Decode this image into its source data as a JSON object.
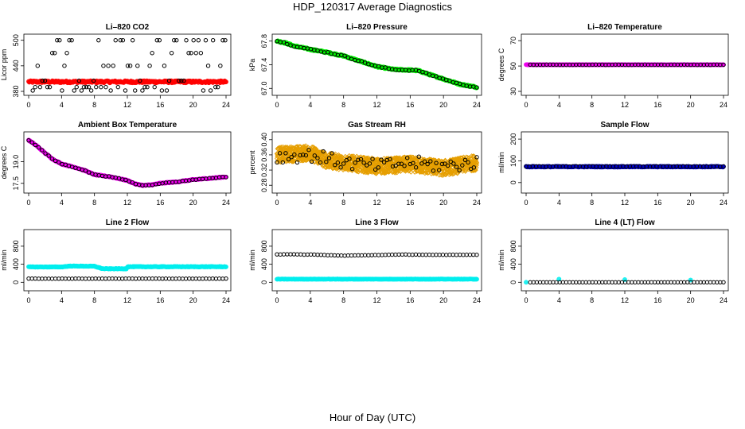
{
  "figure": {
    "title": "HDP_120317  Average Diagnostics",
    "xlabel": "Hour of Day (UTC)"
  },
  "chart_data": [
    {
      "type": "scatter",
      "title": "Li–820 CO2",
      "ylabel": "Licor ppm",
      "xlim": [
        0,
        24
      ],
      "xticks": [
        0,
        4,
        8,
        12,
        16,
        20,
        24
      ],
      "ylim": [
        380,
        505
      ],
      "yticks": [
        380,
        440,
        500
      ],
      "series": [
        {
          "color": "#ff0000",
          "marker": "circle",
          "pattern": "band",
          "band": [
            400,
            405
          ]
        },
        {
          "color": "#000000",
          "marker": "circle",
          "pattern": "levels",
          "levels": [
            500,
            470,
            440,
            405,
            390,
            382
          ],
          "count": 80
        }
      ]
    },
    {
      "type": "scatter",
      "title": "Li–820 Pressure",
      "ylabel": "kPa",
      "xlim": [
        0,
        24
      ],
      "xticks": [
        0,
        4,
        8,
        12,
        16,
        20,
        24
      ],
      "ylim": [
        66.95,
        67.85
      ],
      "yticks": [
        67.0,
        67.4,
        67.8
      ],
      "series": [
        {
          "color": "#00ee00",
          "marker": "circle",
          "pattern": "curve",
          "x": [
            0,
            1,
            2,
            4,
            6,
            8,
            10,
            12,
            14,
            16,
            17,
            18,
            20,
            22,
            24
          ],
          "y": [
            67.8,
            67.77,
            67.72,
            67.66,
            67.61,
            67.55,
            67.46,
            67.37,
            67.32,
            67.31,
            67.3,
            67.25,
            67.16,
            67.07,
            67.02
          ],
          "jitter": 0.012,
          "count": 400
        },
        {
          "color": "#000000",
          "marker": "circle",
          "pattern": "curve",
          "x": [
            0,
            1,
            2,
            4,
            6,
            8,
            10,
            12,
            14,
            16,
            17,
            18,
            20,
            22,
            24
          ],
          "y": [
            67.8,
            67.77,
            67.72,
            67.66,
            67.61,
            67.55,
            67.46,
            67.37,
            67.32,
            67.31,
            67.3,
            67.25,
            67.16,
            67.07,
            67.02
          ],
          "jitter": 0.01,
          "count": 60
        }
      ]
    },
    {
      "type": "scatter",
      "title": "Li–820 Temperature",
      "ylabel": "degrees C",
      "xlim": [
        0,
        24
      ],
      "xticks": [
        0,
        4,
        8,
        12,
        16,
        20,
        24
      ],
      "ylim": [
        30,
        72
      ],
      "yticks": [
        30,
        50,
        70
      ],
      "series": [
        {
          "color": "#ee00ee",
          "marker": "circle",
          "pattern": "curve",
          "x": [
            0,
            24
          ],
          "y": [
            51,
            51
          ],
          "jitter": 0.1,
          "count": 300
        },
        {
          "color": "#000000",
          "marker": "circle",
          "pattern": "curve",
          "x": [
            0.5,
            24
          ],
          "y": [
            51,
            51
          ],
          "jitter": 0.1,
          "count": 60
        }
      ]
    },
    {
      "type": "scatter",
      "title": "Ambient Box Temperature",
      "ylabel": "degrees C",
      "xlim": [
        0,
        24
      ],
      "xticks": [
        0,
        4,
        8,
        12,
        16,
        20,
        24
      ],
      "ylim": [
        17.1,
        20.8
      ],
      "yticks": [
        17.5,
        19.0
      ],
      "series": [
        {
          "color": "#ee00ee",
          "marker": "circle",
          "pattern": "curve",
          "x": [
            0,
            1,
            2,
            3,
            4,
            5,
            6,
            7,
            8,
            10,
            12,
            13,
            14,
            15,
            16,
            18,
            20,
            22,
            24
          ],
          "y": [
            20.5,
            20.1,
            19.6,
            19.15,
            18.85,
            18.7,
            18.55,
            18.35,
            18.1,
            17.95,
            17.7,
            17.45,
            17.35,
            17.4,
            17.5,
            17.6,
            17.75,
            17.85,
            17.95
          ],
          "jitter": 0.03,
          "count": 300
        },
        {
          "color": "#000000",
          "marker": "circle",
          "pattern": "curve",
          "x": [
            0,
            1,
            2,
            3,
            4,
            5,
            6,
            7,
            8,
            10,
            12,
            13,
            14,
            15,
            16,
            18,
            20,
            22,
            24
          ],
          "y": [
            20.5,
            20.1,
            19.6,
            19.15,
            18.85,
            18.7,
            18.55,
            18.35,
            18.1,
            17.95,
            17.7,
            17.45,
            17.35,
            17.4,
            17.5,
            17.6,
            17.75,
            17.85,
            17.95
          ],
          "jitter": 0.02,
          "count": 60
        }
      ]
    },
    {
      "type": "scatter",
      "title": "Gas Stream RH",
      "ylabel": "percent",
      "xlim": [
        0,
        24
      ],
      "xticks": [
        0,
        4,
        8,
        12,
        16,
        20,
        24
      ],
      "ylim": [
        0.27,
        0.41
      ],
      "yticks": [
        0.28,
        0.32,
        0.36,
        0.4
      ],
      "series": [
        {
          "color": "#e69f00",
          "marker": "diamond",
          "pattern": "curve",
          "x": [
            0,
            4,
            6,
            8,
            12,
            16,
            20,
            24
          ],
          "y": [
            0.36,
            0.365,
            0.345,
            0.34,
            0.33,
            0.335,
            0.325,
            0.34
          ],
          "jitter": 0.02,
          "count": 1300
        },
        {
          "color": "#000000",
          "marker": "circle",
          "pattern": "curve",
          "x": [
            0,
            4,
            8,
            12,
            16,
            20,
            24
          ],
          "y": [
            0.355,
            0.36,
            0.34,
            0.33,
            0.34,
            0.33,
            0.34
          ],
          "jitter": 0.018,
          "count": 70
        }
      ]
    },
    {
      "type": "scatter",
      "title": "Sample Flow",
      "ylabel": "ml/min",
      "xlim": [
        0,
        24
      ],
      "xticks": [
        0,
        4,
        8,
        12,
        16,
        20,
        24
      ],
      "ylim": [
        -30,
        215
      ],
      "yticks": [
        0,
        100,
        200
      ],
      "series": [
        {
          "color": "#0000cc",
          "marker": "circle",
          "pattern": "curve",
          "x": [
            0,
            24
          ],
          "y": [
            73,
            73
          ],
          "jitter": 2,
          "count": 300
        },
        {
          "color": "#000000",
          "marker": "circle",
          "pattern": "curve",
          "x": [
            0,
            24
          ],
          "y": [
            74,
            74
          ],
          "jitter": 1,
          "count": 60
        }
      ]
    },
    {
      "type": "scatter",
      "title": "Line 2 Flow",
      "ylabel": "ml/min",
      "xlim": [
        0,
        24
      ],
      "xticks": [
        0,
        4,
        8,
        12,
        16,
        20,
        24
      ],
      "ylim": [
        -100,
        1080
      ],
      "yticks": [
        0,
        400,
        800
      ],
      "series": [
        {
          "color": "#00eeee",
          "marker": "circle",
          "pattern": "curve",
          "x": [
            0,
            4,
            5,
            8,
            9,
            11.9,
            12,
            24
          ],
          "y": [
            340,
            340,
            360,
            355,
            300,
            300,
            345,
            345
          ],
          "jitter": 6,
          "count": 300
        },
        {
          "color": "#000000",
          "marker": "circle",
          "pattern": "curve",
          "x": [
            0,
            24
          ],
          "y": [
            80,
            80
          ],
          "jitter": 2,
          "count": 60
        }
      ]
    },
    {
      "type": "scatter",
      "title": "Line 3 Flow",
      "ylabel": "ml/min",
      "xlim": [
        0,
        24
      ],
      "xticks": [
        0,
        4,
        8,
        12,
        16,
        20,
        24
      ],
      "ylim": [
        -100,
        1080
      ],
      "yticks": [
        0,
        400,
        800
      ],
      "series": [
        {
          "color": "#00eeee",
          "marker": "circle",
          "pattern": "curve",
          "x": [
            0,
            24
          ],
          "y": [
            70,
            70
          ],
          "jitter": 3,
          "count": 300
        },
        {
          "color": "#000000",
          "marker": "circle",
          "pattern": "curve",
          "x": [
            0,
            4,
            8,
            12,
            16,
            20,
            24
          ],
          "y": [
            620,
            615,
            590,
            605,
            615,
            605,
            610
          ],
          "jitter": 4,
          "count": 60
        }
      ]
    },
    {
      "type": "scatter",
      "title": "Line 4 (LT) Flow",
      "ylabel": "ml/min",
      "xlim": [
        0,
        24
      ],
      "xticks": [
        0,
        4,
        8,
        12,
        16,
        20,
        24
      ],
      "ylim": [
        -100,
        1080
      ],
      "yticks": [
        0,
        400,
        800
      ],
      "series": [
        {
          "color": "#00eeee",
          "marker": "circle",
          "pattern": "spikes",
          "base": 0,
          "spikes": [
            [
              0,
              0
            ],
            [
              4,
              70
            ],
            [
              12,
              60
            ],
            [
              20,
              50
            ]
          ]
        },
        {
          "color": "#000000",
          "marker": "circle",
          "pattern": "curve",
          "x": [
            0.5,
            24
          ],
          "y": [
            0,
            0
          ],
          "jitter": 1,
          "count": 60
        }
      ]
    }
  ]
}
